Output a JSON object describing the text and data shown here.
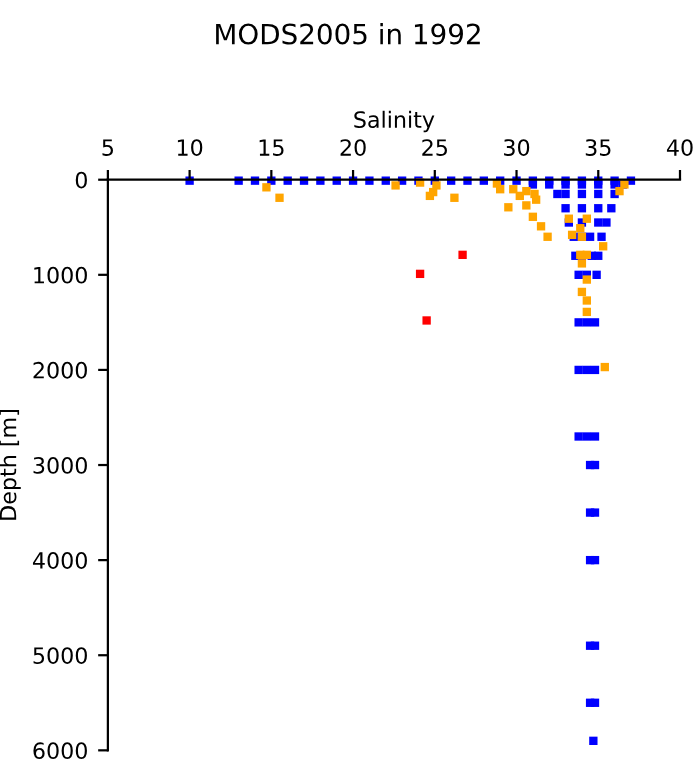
{
  "chart_data": {
    "type": "scatter",
    "title": "MODS2005 in 1992",
    "xlabel": "Salinity",
    "ylabel": "Depth [m]",
    "xlim": [
      5,
      40
    ],
    "xticks": [
      5,
      10,
      15,
      20,
      25,
      30,
      35,
      40
    ],
    "ylim": [
      6000,
      0
    ],
    "yticks": [
      0,
      1000,
      2000,
      3000,
      4000,
      5000,
      6000
    ],
    "grid": false,
    "marker": "square",
    "series": [
      {
        "color": "#0000ff",
        "x": [
          10,
          13,
          14,
          15,
          16,
          17,
          18,
          19,
          20,
          21,
          22,
          23,
          24,
          25,
          26,
          27,
          28,
          29,
          30,
          31,
          32,
          33,
          34,
          35,
          36,
          37,
          31,
          32,
          33,
          34,
          35,
          36,
          36.5,
          32.5,
          33,
          34,
          35,
          36,
          33,
          34,
          35,
          35.8,
          33.2,
          34,
          35,
          35.5,
          33.5,
          34,
          34.5,
          35.2,
          33.6,
          34,
          34.6,
          35,
          33.8,
          34.3,
          34.9,
          33.8,
          34.3,
          34.8,
          33.8,
          34.3,
          34.8,
          33.8,
          34.3,
          34.8,
          34.5,
          34.8,
          34.5,
          34.8,
          34.5,
          34.8,
          34.5,
          34.8,
          34.5,
          34.8,
          34.7
        ],
        "values": [
          10,
          10,
          10,
          10,
          10,
          10,
          10,
          10,
          10,
          10,
          10,
          10,
          10,
          10,
          10,
          10,
          10,
          10,
          10,
          10,
          10,
          10,
          10,
          10,
          10,
          10,
          50,
          50,
          50,
          50,
          50,
          50,
          50,
          150,
          150,
          150,
          150,
          150,
          300,
          300,
          300,
          300,
          450,
          450,
          450,
          450,
          600,
          600,
          600,
          600,
          800,
          800,
          800,
          800,
          1000,
          1000,
          1000,
          1500,
          1500,
          1500,
          2000,
          2000,
          2000,
          2700,
          2700,
          2700,
          3000,
          3000,
          3500,
          3500,
          4000,
          4000,
          4900,
          4900,
          5500,
          5500,
          5900
        ]
      },
      {
        "color": "#ffa500",
        "x": [
          14.7,
          15.5,
          24.1,
          24.9,
          25.1,
          24.7,
          26.2,
          28.8,
          29.0,
          29.8,
          29.5,
          30.2,
          30.6,
          30.6,
          31.1,
          31.2,
          31.0,
          31.5,
          31.9,
          33.2,
          33.4,
          33.9,
          34.0,
          34.3,
          33.9,
          34.3,
          34.0,
          34.3,
          34.0,
          34.3,
          34.3,
          35.4,
          35.3,
          36.6,
          36.3,
          22.6
        ],
        "values": [
          80,
          190,
          30,
          130,
          60,
          170,
          190,
          40,
          100,
          100,
          290,
          170,
          120,
          270,
          150,
          210,
          390,
          490,
          600,
          410,
          580,
          510,
          600,
          410,
          790,
          790,
          880,
          1050,
          1180,
          1270,
          1390,
          1970,
          700,
          50,
          120,
          60
        ]
      },
      {
        "color": "#ff0000",
        "x": [
          26.7,
          24.1,
          24.5
        ],
        "values": [
          790,
          990,
          1480
        ]
      }
    ]
  }
}
